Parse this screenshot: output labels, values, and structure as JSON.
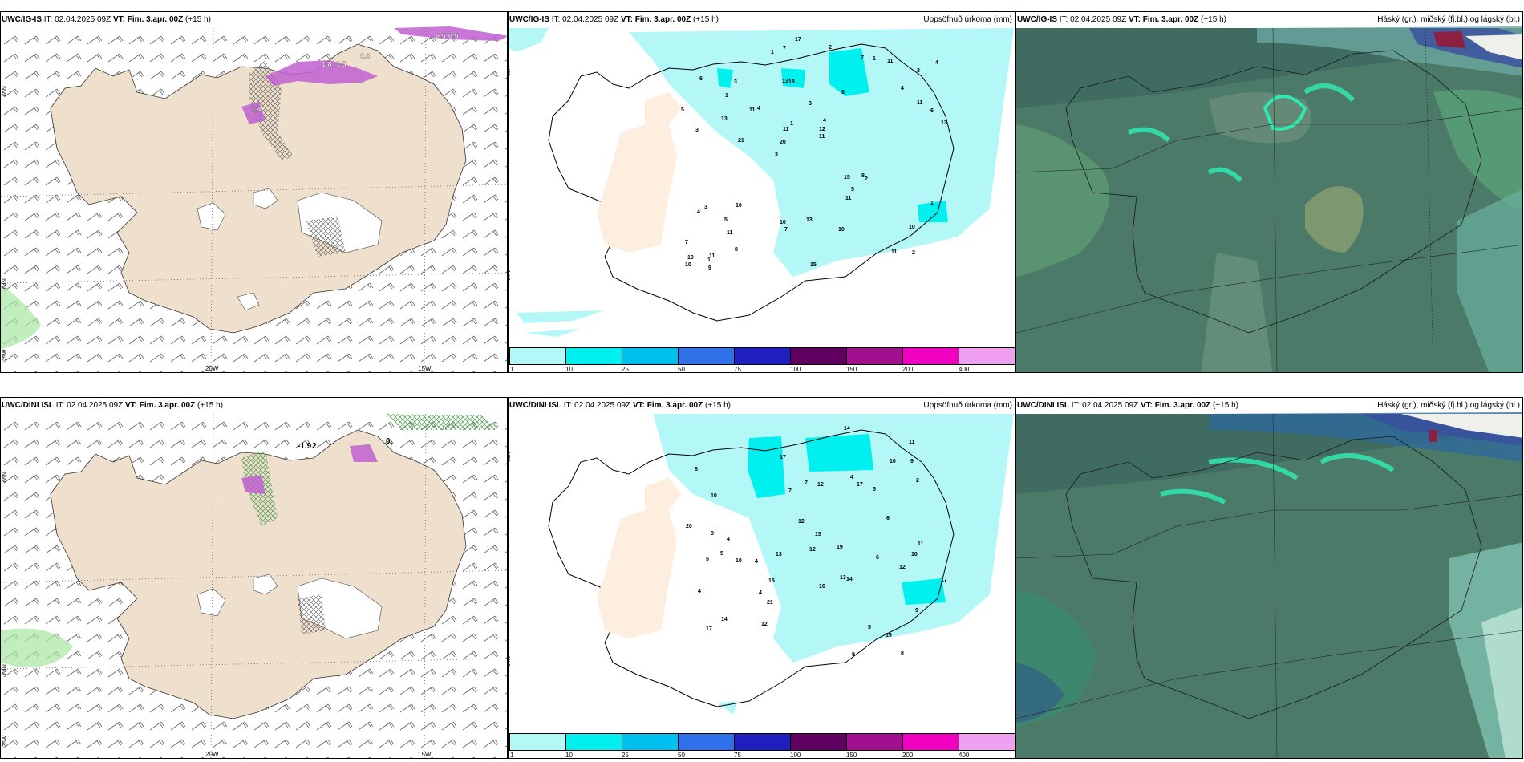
{
  "panels": {
    "p1": {
      "model": "UWC/IG-IS",
      "it_label": "IT:",
      "it": "02.04.2025 09Z",
      "vt_label": "VT:",
      "vt": "Fim. 3.apr. 00Z",
      "lead": "(+15 h)",
      "right": ""
    },
    "p2": {
      "model": "UWC/IG-IS",
      "it_label": "IT:",
      "it": "02.04.2025 09Z",
      "vt_label": "VT:",
      "vt": "Fim. 3.apr. 00Z",
      "lead": "(+15 h)",
      "right": "Uppsöfnuð úrkoma (mm)"
    },
    "p3": {
      "model": "UWC/IG-IS",
      "it_label": "IT:",
      "it": "02.04.2025 09Z",
      "vt_label": "VT:",
      "vt": "Fim. 3.apr. 00Z",
      "lead": "(+15 h)",
      "right": "Háský (gr.), miðský (fj.bl.) og lágský (bl.)"
    },
    "p4": {
      "model": "UWC/DINI ISL",
      "it_label": "IT:",
      "it": "02.04.2025 09Z",
      "vt_label": "VT:",
      "vt": "Fim. 3.apr. 00Z",
      "lead": "(+15 h)",
      "right": ""
    },
    "p5": {
      "model": "UWC/DINI ISL",
      "it_label": "IT:",
      "it": "02.04.2025 09Z",
      "vt_label": "VT:",
      "vt": "Fim. 3.apr. 00Z",
      "lead": "(+15 h)",
      "right": "Uppsöfnuð úrkoma (mm)"
    },
    "p6": {
      "model": "UWC/DINI ISL",
      "it_label": "IT:",
      "it": "02.04.2025 09Z",
      "vt_label": "VT:",
      "vt": "Fim. 3.apr. 00Z",
      "lead": "(+15 h)",
      "right": "Háský (gr.), miðský (fj.bl.) og lágský (bl.)"
    }
  },
  "axes": {
    "lon1": "20W",
    "lon2": "15W",
    "lat1": "65N",
    "lat2": "64N",
    "lon0": "25W"
  },
  "colorbar": {
    "labels": [
      "1",
      "10",
      "25",
      "50",
      "75",
      "100",
      "150",
      "200",
      "400"
    ],
    "colors": [
      "#b3f7f7",
      "#00f0f0",
      "#00c0f0",
      "#3070e8",
      "#2020c0",
      "#600060",
      "#a0108f",
      "#f000c0",
      "#f0a0f0"
    ]
  },
  "precip_top": [
    "2",
    "3",
    "3",
    "3",
    "8",
    "11",
    "13",
    "3",
    "3",
    "4",
    "7",
    "11",
    "18",
    "4",
    "2",
    "6",
    "7",
    "13",
    "15",
    "11",
    "20",
    "10",
    "11",
    "3",
    "7",
    "10",
    "11",
    "10",
    "8",
    "15",
    "11",
    "13",
    "11",
    "8",
    "6",
    "12",
    "10",
    "7",
    "11",
    "4",
    "4",
    "4",
    "5",
    "10",
    "5",
    "9",
    "10",
    "13",
    "11",
    "17",
    "21",
    "5",
    "1",
    "1",
    "1",
    "2",
    "1",
    "1",
    "1"
  ],
  "precip_bot": [
    "8",
    "5",
    "13",
    "8",
    "9",
    "10",
    "14",
    "4",
    "5",
    "7",
    "17",
    "19",
    "21",
    "17",
    "19",
    "4",
    "6",
    "15",
    "20",
    "17",
    "11",
    "12",
    "6",
    "17",
    "11",
    "8",
    "10",
    "12",
    "12",
    "9",
    "14",
    "5",
    "4",
    "4",
    "7",
    "12",
    "10",
    "5",
    "10",
    "9",
    "15",
    "16",
    "12",
    "14",
    "13",
    "4",
    "2"
  ],
  "wind_labels_top": [
    "0.5",
    "0.5",
    "1.8",
    "1.5",
    "0.3",
    "1.4"
  ],
  "wind_labels_bot": [
    "-1.9",
    "2",
    "0."
  ]
}
